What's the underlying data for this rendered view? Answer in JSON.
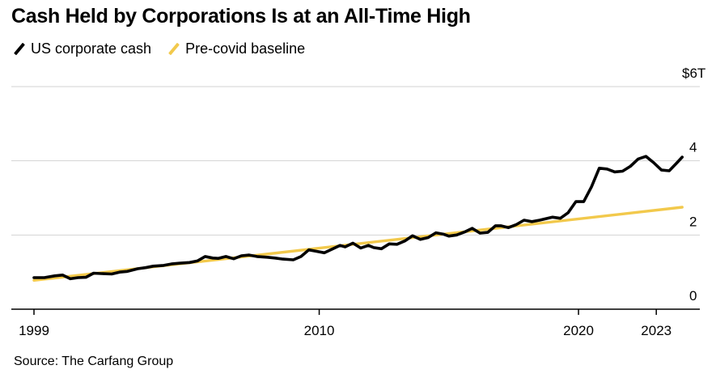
{
  "title": "Cash Held by Corporations Is at an All-Time High",
  "source": "Source: The Carfang Group",
  "colors": {
    "cash": "#000000",
    "baseline": "#f2c94c",
    "grid": "#d3d3d3",
    "axis": "#000000"
  },
  "chart_data": {
    "type": "line",
    "title": "Cash Held by Corporations Is at an All-Time High",
    "xlabel": "",
    "ylabel": "",
    "xlim": [
      1999,
      2024.3
    ],
    "ylim": [
      0,
      6
    ],
    "x_ticks": [
      {
        "value": 1999,
        "label": "1999"
      },
      {
        "value": 2010,
        "label": "2010"
      },
      {
        "value": 2020,
        "label": "2020"
      },
      {
        "value": 2023,
        "label": "2023"
      }
    ],
    "y_ticks": [
      {
        "value": 0,
        "label": "0"
      },
      {
        "value": 2,
        "label": "2"
      },
      {
        "value": 4,
        "label": "4"
      },
      {
        "value": 6,
        "label": "$6T"
      }
    ],
    "legend_position": "top-left",
    "series": [
      {
        "name": "US corporate cash",
        "color": "#000000",
        "x": [
          1999,
          1999.4,
          1999.8,
          2000.1,
          2000.4,
          2000.7,
          2001.0,
          2001.3,
          2001.6,
          2002.0,
          2002.3,
          2002.6,
          2003.0,
          2003.3,
          2003.6,
          2004.0,
          2004.3,
          2004.6,
          2005.0,
          2005.3,
          2005.6,
          2005.9,
          2006.1,
          2006.4,
          2006.7,
          2007.0,
          2007.3,
          2007.6,
          2008.0,
          2008.3,
          2008.6,
          2009.0,
          2009.3,
          2009.6,
          2009.9,
          2010.2,
          2010.5,
          2010.8,
          2011.0,
          2011.3,
          2011.6,
          2011.9,
          2012.1,
          2012.4,
          2012.7,
          2013.0,
          2013.3,
          2013.6,
          2013.9,
          2014.2,
          2014.5,
          2014.8,
          2015.0,
          2015.3,
          2015.6,
          2015.9,
          2016.2,
          2016.5,
          2016.8,
          2017.0,
          2017.3,
          2017.6,
          2017.9,
          2018.2,
          2018.5,
          2018.8,
          2019.0,
          2019.3,
          2019.6,
          2019.9,
          2020.2,
          2020.5,
          2020.8,
          2021.1,
          2021.4,
          2021.7,
          2022.0,
          2022.3,
          2022.6,
          2022.9,
          2023.2,
          2023.5,
          2023.8,
          2024.0
        ],
        "values": [
          0.85,
          0.85,
          0.9,
          0.92,
          0.82,
          0.85,
          0.86,
          0.97,
          0.96,
          0.95,
          1.0,
          1.02,
          1.09,
          1.12,
          1.16,
          1.18,
          1.22,
          1.24,
          1.26,
          1.3,
          1.42,
          1.38,
          1.37,
          1.42,
          1.36,
          1.44,
          1.46,
          1.42,
          1.4,
          1.38,
          1.35,
          1.33,
          1.42,
          1.6,
          1.56,
          1.52,
          1.62,
          1.72,
          1.68,
          1.78,
          1.65,
          1.72,
          1.66,
          1.63,
          1.76,
          1.75,
          1.84,
          1.98,
          1.88,
          1.93,
          2.06,
          2.02,
          1.97,
          2.0,
          2.08,
          2.18,
          2.05,
          2.07,
          2.25,
          2.25,
          2.2,
          2.28,
          2.4,
          2.36,
          2.4,
          2.45,
          2.48,
          2.45,
          2.6,
          2.9,
          2.9,
          3.3,
          3.8,
          3.78,
          3.7,
          3.72,
          3.85,
          4.05,
          4.12,
          3.95,
          3.75,
          3.73,
          3.95,
          4.1
        ]
      },
      {
        "name": "Pre-covid baseline",
        "color": "#f2c94c",
        "x": [
          1999,
          2024
        ],
        "values": [
          0.78,
          2.75
        ]
      }
    ]
  }
}
